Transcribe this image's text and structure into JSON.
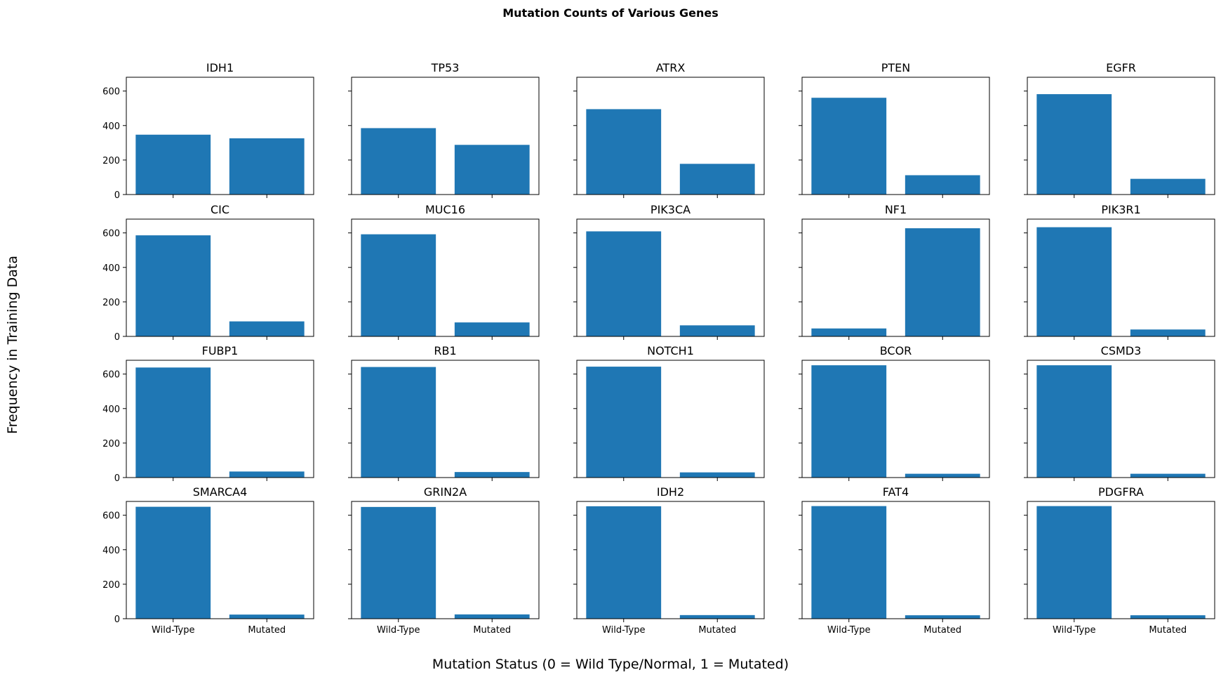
{
  "chart_data": {
    "type": "bar",
    "title": "Mutation Counts of Various Genes",
    "xlabel": "Mutation Status (0 = Wild Type/Normal, 1 = Mutated)",
    "ylabel": "Frequency in Training Data",
    "categories": [
      "Wild-Type",
      "Mutated"
    ],
    "ylim": [
      0,
      680
    ],
    "yticks": [
      0,
      200,
      400,
      600
    ],
    "grid": false,
    "bar_color": "#1f77b4",
    "rows": 4,
    "cols": 5,
    "sharex": true,
    "sharey": true,
    "panels": [
      {
        "title": "IDH1",
        "values": [
          347,
          326
        ]
      },
      {
        "title": "TP53",
        "values": [
          385,
          288
        ]
      },
      {
        "title": "ATRX",
        "values": [
          495,
          178
        ]
      },
      {
        "title": "PTEN",
        "values": [
          561,
          112
        ]
      },
      {
        "title": "EGFR",
        "values": [
          582,
          91
        ]
      },
      {
        "title": "CIC",
        "values": [
          586,
          87
        ]
      },
      {
        "title": "MUC16",
        "values": [
          592,
          81
        ]
      },
      {
        "title": "PIK3CA",
        "values": [
          609,
          64
        ]
      },
      {
        "title": "NF1",
        "values": [
          46,
          627
        ]
      },
      {
        "title": "PIK3R1",
        "values": [
          633,
          40
        ]
      },
      {
        "title": "FUBP1",
        "values": [
          638,
          35
        ]
      },
      {
        "title": "RB1",
        "values": [
          641,
          32
        ]
      },
      {
        "title": "NOTCH1",
        "values": [
          643,
          30
        ]
      },
      {
        "title": "BCOR",
        "values": [
          651,
          22
        ]
      },
      {
        "title": "CSMD3",
        "values": [
          651,
          22
        ]
      },
      {
        "title": "SMARCA4",
        "values": [
          649,
          24
        ]
      },
      {
        "title": "GRIN2A",
        "values": [
          648,
          25
        ]
      },
      {
        "title": "IDH2",
        "values": [
          652,
          21
        ]
      },
      {
        "title": "FAT4",
        "values": [
          653,
          20
        ]
      },
      {
        "title": "PDGFRA",
        "values": [
          653,
          20
        ]
      }
    ]
  }
}
